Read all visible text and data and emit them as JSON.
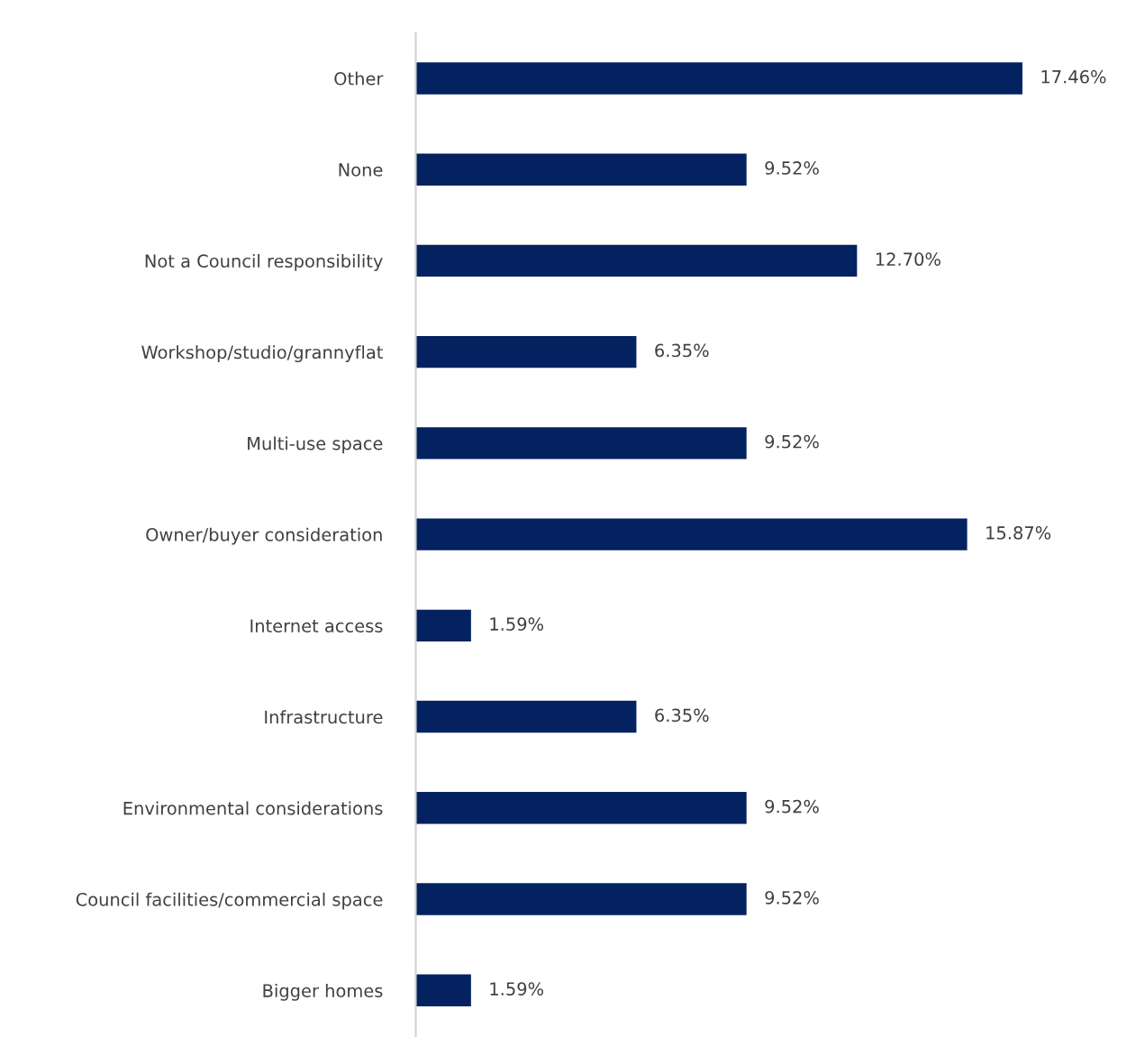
{
  "chart_data": {
    "type": "bar",
    "orientation": "horizontal",
    "color": "#042260",
    "categories": [
      "Other",
      "None",
      "Not a Council responsibility",
      "Workshop/studio/grannyflat",
      "Multi-use space",
      "Owner/buyer consideration",
      "Internet access",
      "Infrastructure",
      "Environmental considerations",
      "Council facilities/commercial space",
      "Bigger homes"
    ],
    "values": [
      17.46,
      9.52,
      12.7,
      6.35,
      9.52,
      15.87,
      1.59,
      6.35,
      9.52,
      9.52,
      1.59
    ],
    "value_labels": [
      "17.46%",
      "9.52%",
      "12.70%",
      "6.35%",
      "9.52%",
      "15.87%",
      "1.59%",
      "6.35%",
      "9.52%",
      "9.52%",
      "1.59%"
    ],
    "grid": false
  }
}
